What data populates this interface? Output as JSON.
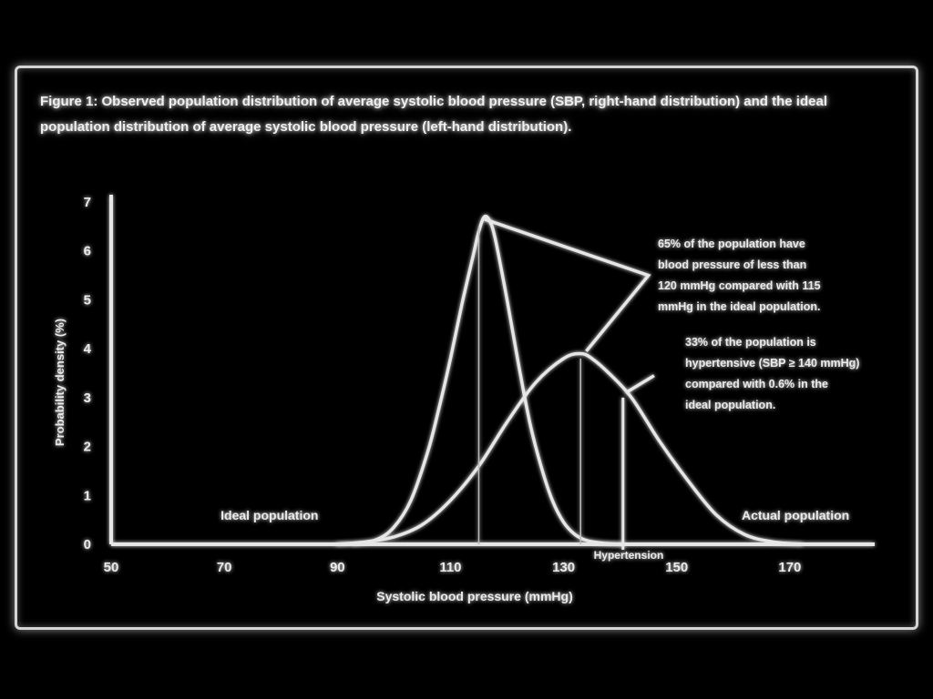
{
  "caption": "Figure 1: Observed population distribution of average systolic blood pressure (SBP, right-hand distribution) and the ideal population distribution of average systolic blood pressure (left-hand distribution).",
  "chart_data": {
    "type": "line",
    "xlabel": "Systolic blood pressure (mmHg)",
    "ylabel": "Probability density (%)",
    "xlim": [
      50,
      185
    ],
    "ylim": [
      0,
      7
    ],
    "x_ticks": [
      50,
      70,
      90,
      110,
      130,
      150,
      170
    ],
    "y_ticks": [
      0,
      1,
      2,
      3,
      4,
      5,
      6,
      7
    ],
    "series": [
      {
        "name": "Ideal population",
        "x": [
          93,
          97,
          100,
          103,
          106,
          108,
          110,
          112,
          114,
          115,
          116,
          117,
          118,
          120,
          122,
          124,
          126,
          128,
          130,
          132,
          134,
          137,
          140
        ],
        "y": [
          0,
          0.1,
          0.35,
          0.9,
          1.9,
          2.8,
          3.8,
          4.9,
          5.9,
          6.4,
          6.7,
          6.6,
          6.2,
          5.0,
          3.7,
          2.5,
          1.6,
          0.9,
          0.45,
          0.2,
          0.08,
          0.02,
          0
        ]
      },
      {
        "name": "Actual population",
        "x": [
          90,
          95,
          100,
          105,
          110,
          115,
          120,
          125,
          130,
          133,
          135,
          138,
          142,
          147,
          152,
          157,
          162,
          167,
          172
        ],
        "y": [
          0,
          0.05,
          0.15,
          0.4,
          0.9,
          1.6,
          2.5,
          3.3,
          3.8,
          3.9,
          3.8,
          3.5,
          3.0,
          2.1,
          1.3,
          0.6,
          0.2,
          0.05,
          0
        ]
      }
    ],
    "annotations": [
      "65% of the population have blood pressure of less than 120 mmHg compared with 115 mmHg in the ideal population.",
      "33% of the population is hypertensive (SBP ≥ 140 mmHg) compared with 0.6% in the ideal population."
    ],
    "markers": [
      "Hypertension"
    ],
    "legend": "inline labels",
    "grid": false
  },
  "colors": {
    "background": "#000000",
    "line": "#e6e6e6"
  }
}
